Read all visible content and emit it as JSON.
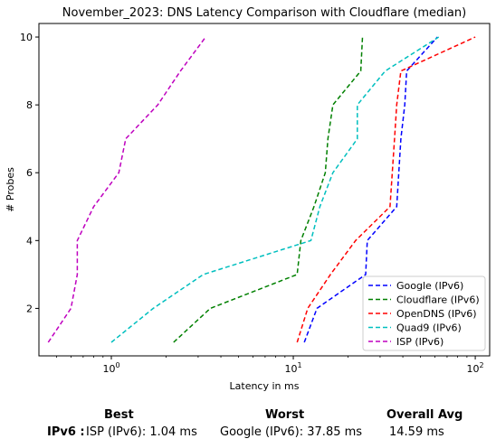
{
  "chart_data": {
    "type": "line",
    "title": "November_2023: DNS Latency Comparison with Cloudflare (median)",
    "xlabel": "Latency in ms",
    "ylabel": "# Probes",
    "xscale": "log",
    "xlim": [
      0.4,
      120
    ],
    "ylim": [
      0.6,
      10.4
    ],
    "xticks": [
      {
        "value": 1,
        "base": "10",
        "exp": "0"
      },
      {
        "value": 10,
        "base": "10",
        "exp": "1"
      },
      {
        "value": 100,
        "base": "10",
        "exp": "2"
      }
    ],
    "yticks": [
      "2",
      "4",
      "6",
      "8",
      "10"
    ],
    "grid": false,
    "legend_position": "lower-right",
    "line_style": "dashed",
    "series": [
      {
        "name": "Google (IPv6)",
        "color": "#0000ff",
        "x": [
          11.5,
          13.5,
          25,
          25.5,
          37,
          38,
          39,
          41,
          42,
          62
        ],
        "y": [
          1,
          2,
          3,
          4,
          5,
          6,
          7,
          8,
          9,
          10
        ]
      },
      {
        "name": "Cloudflare (IPv6)",
        "color": "#008000",
        "x": [
          2.2,
          3.5,
          10.5,
          11,
          13,
          15,
          15.5,
          16.5,
          23.5,
          24
        ],
        "y": [
          1,
          2,
          3,
          4,
          5,
          6,
          7,
          8,
          9,
          10
        ]
      },
      {
        "name": "OpenDNS (IPv6)",
        "color": "#ff0000",
        "x": [
          10.5,
          12,
          16,
          22,
          34,
          35,
          36,
          37,
          39,
          100
        ],
        "y": [
          1,
          2,
          3,
          4,
          5,
          6,
          7,
          8,
          9,
          10
        ]
      },
      {
        "name": "Quad9 (IPv6)",
        "color": "#00bfbf",
        "x": [
          1,
          1.7,
          3.2,
          12.5,
          14,
          16.5,
          22.5,
          22.5,
          32,
          63
        ],
        "y": [
          1,
          2,
          3,
          4,
          5,
          6,
          7,
          8,
          9,
          10
        ]
      },
      {
        "name": "ISP (IPv6)",
        "color": "#bf00bf",
        "x": [
          0.45,
          0.6,
          0.65,
          0.65,
          0.8,
          1.1,
          1.2,
          1.8,
          2.4,
          3.3
        ],
        "y": [
          1,
          2,
          3,
          4,
          5,
          6,
          7,
          8,
          9,
          10
        ]
      }
    ]
  },
  "summary": {
    "best_header": "Best",
    "worst_header": "Worst",
    "avg_header": "Overall Avg",
    "row_label": "IPv6 :",
    "best_value": "ISP (IPv6): 1.04 ms",
    "worst_value": "Google (IPv6): 37.85 ms",
    "avg_value": "14.59 ms"
  }
}
